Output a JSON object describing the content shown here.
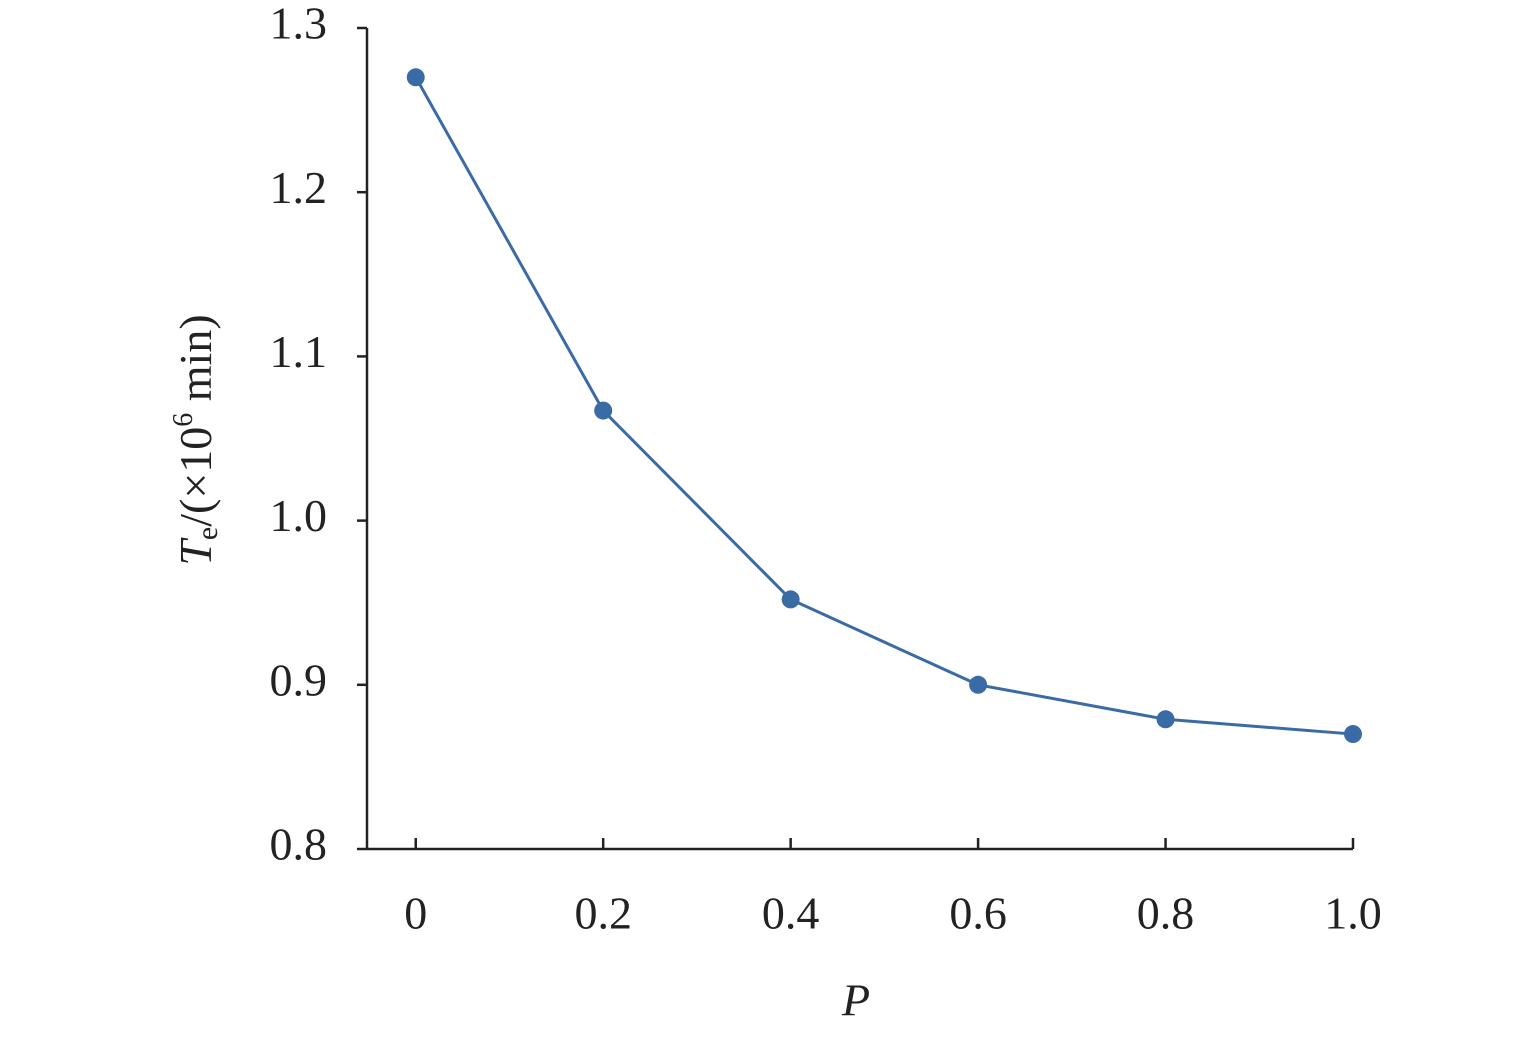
{
  "chart_data": {
    "type": "line",
    "x_label": "P",
    "y_label": {
      "symbol": "T",
      "subscript": "e",
      "unit": "/(×10",
      "exponent": "6",
      "unit_end": " min)"
    },
    "x": [
      0,
      0.2,
      0.4,
      0.6,
      0.8,
      1.0
    ],
    "series": [
      {
        "color": "#3b6ba5",
        "values": [
          1.27,
          1.067,
          0.952,
          0.9,
          0.879,
          0.87
        ]
      }
    ],
    "xlim": [
      -0.052,
      1.0
    ],
    "xticks": [
      0,
      0.2,
      0.4,
      0.6,
      0.8,
      {
        "value": 1.0,
        "label": "1.0"
      }
    ],
    "ylim": [
      0.8,
      1.3
    ],
    "yticks": [
      0.8,
      0.9,
      {
        "value": 1.0,
        "label": "1.0"
      },
      1.1,
      1.2,
      1.3
    ],
    "grid": false
  }
}
